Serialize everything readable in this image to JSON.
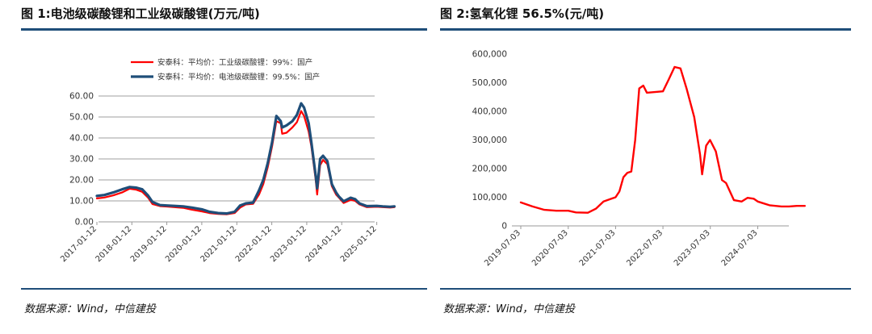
{
  "left_panel": {
    "title": "图 1:电池级碳酸锂和工业级碳酸锂(万元/吨)",
    "source": "数据来源：Wind，中信建投"
  },
  "right_panel": {
    "title": "图 2:氢氧化锂 56.5%(元/吨)",
    "source": "数据来源：Wind，中信建投"
  },
  "chart_data": [
    {
      "type": "line",
      "title": "图 1:电池级碳酸锂和工业级碳酸锂(万元/吨)",
      "xlabel": "",
      "ylabel": "",
      "ylim": [
        0,
        60
      ],
      "yticks": [
        "0.00",
        "10.00",
        "20.00",
        "30.00",
        "40.00",
        "50.00",
        "60.00"
      ],
      "xticks": [
        "2017-01-12",
        "2018-01-12",
        "2019-01-12",
        "2020-01-12",
        "2021-01-12",
        "2022-01-12",
        "2023-01-12",
        "2024-01-12",
        "2025-01-12"
      ],
      "grid": "horizontal",
      "legend_position": "top",
      "series": [
        {
          "name": "安泰科：平均价：工业级碳酸锂：99%：国产",
          "color": "#ff0000",
          "points": [
            [
              "2017-01-12",
              11.2
            ],
            [
              "2017-04-01",
              11.6
            ],
            [
              "2017-07-01",
              12.6
            ],
            [
              "2017-10-01",
              14.0
            ],
            [
              "2017-12-20",
              15.8
            ],
            [
              "2018-03-01",
              15.3
            ],
            [
              "2018-05-01",
              14.3
            ],
            [
              "2018-07-01",
              11.5
            ],
            [
              "2018-08-15",
              8.5
            ],
            [
              "2018-11-01",
              7.5
            ],
            [
              "2019-01-12",
              7.3
            ],
            [
              "2019-04-01",
              7.0
            ],
            [
              "2019-07-01",
              6.7
            ],
            [
              "2019-10-01",
              5.8
            ],
            [
              "2020-01-12",
              5.0
            ],
            [
              "2020-04-01",
              4.2
            ],
            [
              "2020-07-01",
              3.8
            ],
            [
              "2020-10-01",
              3.6
            ],
            [
              "2020-12-20",
              4.2
            ],
            [
              "2021-02-15",
              6.8
            ],
            [
              "2021-04-15",
              8.3
            ],
            [
              "2021-07-01",
              8.6
            ],
            [
              "2021-09-01",
              13.0
            ],
            [
              "2021-10-15",
              18.0
            ],
            [
              "2021-12-01",
              26.0
            ],
            [
              "2022-01-15",
              36.0
            ],
            [
              "2022-03-01",
              48.0
            ],
            [
              "2022-04-15",
              47.0
            ],
            [
              "2022-05-01",
              42.0
            ],
            [
              "2022-06-15",
              42.5
            ],
            [
              "2022-08-15",
              45.0
            ],
            [
              "2022-10-01",
              47.5
            ],
            [
              "2022-11-15",
              52.8
            ],
            [
              "2022-12-15",
              50.5
            ],
            [
              "2023-02-01",
              43.0
            ],
            [
              "2023-03-01",
              36.0
            ],
            [
              "2023-04-15",
              20.0
            ],
            [
              "2023-05-01",
              13.0
            ],
            [
              "2023-06-01",
              27.0
            ],
            [
              "2023-07-01",
              29.5
            ],
            [
              "2023-08-15",
              27.5
            ],
            [
              "2023-10-01",
              17.0
            ],
            [
              "2023-11-15",
              13.0
            ],
            [
              "2023-12-15",
              11.5
            ],
            [
              "2024-02-01",
              9.0
            ],
            [
              "2024-04-15",
              10.5
            ],
            [
              "2024-06-01",
              10.0
            ],
            [
              "2024-07-15",
              8.3
            ],
            [
              "2024-10-01",
              7.0
            ],
            [
              "2025-01-12",
              7.2
            ],
            [
              "2025-03-15",
              7.0
            ],
            [
              "2025-06-01",
              6.8
            ],
            [
              "2025-07-15",
              7.0
            ]
          ]
        },
        {
          "name": "安泰科：平均价：电池级碳酸锂：99.5%：国产",
          "color": "#1f4e79",
          "points": [
            [
              "2017-01-12",
              12.4
            ],
            [
              "2017-04-01",
              12.8
            ],
            [
              "2017-07-01",
              14.0
            ],
            [
              "2017-10-01",
              15.5
            ],
            [
              "2017-12-20",
              16.6
            ],
            [
              "2018-03-01",
              16.3
            ],
            [
              "2018-05-01",
              15.5
            ],
            [
              "2018-07-01",
              12.5
            ],
            [
              "2018-08-15",
              9.5
            ],
            [
              "2018-11-01",
              8.0
            ],
            [
              "2019-01-12",
              7.8
            ],
            [
              "2019-04-01",
              7.6
            ],
            [
              "2019-07-01",
              7.4
            ],
            [
              "2019-10-01",
              6.8
            ],
            [
              "2020-01-12",
              6.0
            ],
            [
              "2020-04-01",
              4.8
            ],
            [
              "2020-07-01",
              4.2
            ],
            [
              "2020-10-01",
              4.0
            ],
            [
              "2020-12-20",
              4.8
            ],
            [
              "2021-02-15",
              7.8
            ],
            [
              "2021-04-15",
              8.8
            ],
            [
              "2021-07-01",
              9.2
            ],
            [
              "2021-09-01",
              15.0
            ],
            [
              "2021-10-15",
              20.0
            ],
            [
              "2021-12-01",
              28.0
            ],
            [
              "2022-01-15",
              38.0
            ],
            [
              "2022-03-01",
              50.5
            ],
            [
              "2022-04-15",
              48.0
            ],
            [
              "2022-05-01",
              45.0
            ],
            [
              "2022-06-15",
              46.0
            ],
            [
              "2022-08-15",
              48.0
            ],
            [
              "2022-10-01",
              51.0
            ],
            [
              "2022-11-15",
              56.5
            ],
            [
              "2022-12-15",
              54.5
            ],
            [
              "2023-02-01",
              47.0
            ],
            [
              "2023-03-01",
              38.0
            ],
            [
              "2023-04-15",
              22.0
            ],
            [
              "2023-05-01",
              16.0
            ],
            [
              "2023-06-01",
              30.0
            ],
            [
              "2023-07-01",
              31.5
            ],
            [
              "2023-08-15",
              29.0
            ],
            [
              "2023-10-01",
              18.0
            ],
            [
              "2023-11-15",
              14.0
            ],
            [
              "2023-12-15",
              12.0
            ],
            [
              "2024-02-01",
              9.8
            ],
            [
              "2024-04-15",
              11.5
            ],
            [
              "2024-06-01",
              10.8
            ],
            [
              "2024-07-15",
              8.8
            ],
            [
              "2024-10-01",
              7.5
            ],
            [
              "2025-01-12",
              7.6
            ],
            [
              "2025-03-15",
              7.4
            ],
            [
              "2025-06-01",
              7.2
            ],
            [
              "2025-07-15",
              7.4
            ]
          ]
        }
      ]
    },
    {
      "type": "line",
      "title": "图 2:氢氧化锂 56.5%(元/吨)",
      "xlabel": "",
      "ylabel": "",
      "ylim": [
        0,
        600000
      ],
      "yticks": [
        "0",
        "100,000",
        "200,000",
        "300,000",
        "400,000",
        "500,000",
        "600,000"
      ],
      "xticks": [
        "2019-07-03",
        "2020-07-03",
        "2021-07-03",
        "2022-07-03",
        "2023-07-03",
        "2024-07-03"
      ],
      "grid": "none",
      "legend_position": "none",
      "series": [
        {
          "name": "",
          "color": "#ff0000",
          "points": [
            [
              "2019-07-03",
              82000
            ],
            [
              "2019-10-01",
              68000
            ],
            [
              "2020-01-01",
              56000
            ],
            [
              "2020-04-01",
              53000
            ],
            [
              "2020-07-03",
              53000
            ],
            [
              "2020-09-01",
              47000
            ],
            [
              "2020-12-01",
              46000
            ],
            [
              "2021-02-01",
              60000
            ],
            [
              "2021-04-01",
              85000
            ],
            [
              "2021-06-01",
              95000
            ],
            [
              "2021-07-03",
              100000
            ],
            [
              "2021-08-01",
              120000
            ],
            [
              "2021-09-01",
              170000
            ],
            [
              "2021-10-01",
              185000
            ],
            [
              "2021-11-01",
              190000
            ],
            [
              "2021-12-01",
              300000
            ],
            [
              "2022-01-01",
              480000
            ],
            [
              "2022-02-01",
              490000
            ],
            [
              "2022-03-01",
              465000
            ],
            [
              "2022-07-03",
              470000
            ],
            [
              "2022-08-15",
              510000
            ],
            [
              "2022-10-01",
              555000
            ],
            [
              "2022-11-15",
              550000
            ],
            [
              "2023-01-01",
              480000
            ],
            [
              "2023-03-01",
              380000
            ],
            [
              "2023-04-15",
              250000
            ],
            [
              "2023-05-01",
              180000
            ],
            [
              "2023-06-01",
              280000
            ],
            [
              "2023-07-01",
              300000
            ],
            [
              "2023-08-15",
              260000
            ],
            [
              "2023-10-01",
              160000
            ],
            [
              "2023-11-01",
              150000
            ],
            [
              "2024-01-01",
              90000
            ],
            [
              "2024-03-01",
              85000
            ],
            [
              "2024-04-15",
              98000
            ],
            [
              "2024-06-01",
              95000
            ],
            [
              "2024-07-03",
              85000
            ],
            [
              "2024-10-01",
              72000
            ],
            [
              "2025-01-01",
              68000
            ],
            [
              "2025-03-01",
              68000
            ],
            [
              "2025-05-01",
              70000
            ],
            [
              "2025-07-01",
              70000
            ]
          ]
        }
      ]
    }
  ]
}
